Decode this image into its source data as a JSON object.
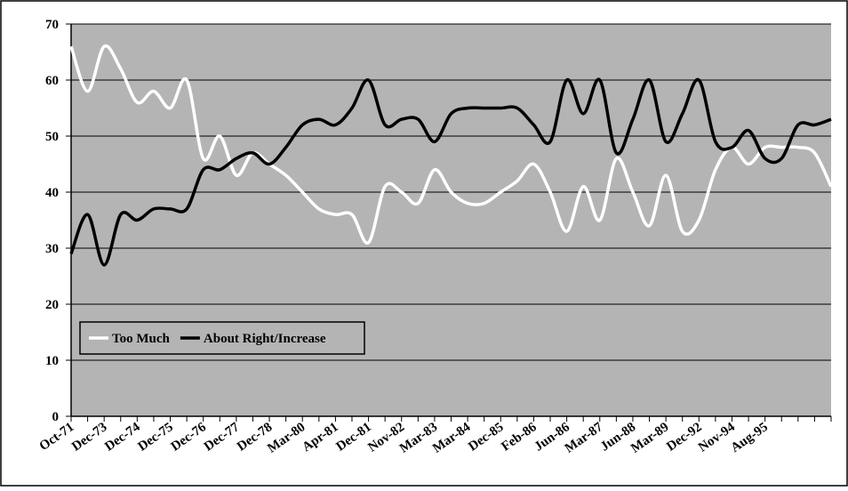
{
  "chart_data": {
    "type": "line",
    "categories": [
      "Oct-71",
      null,
      "Dec-73",
      null,
      "Dec-74",
      null,
      "Dec-75",
      null,
      "Dec-76",
      null,
      "Dec-77",
      null,
      "Dec-78",
      null,
      "Mar-80",
      null,
      "Apr-81",
      null,
      "Dec-81",
      null,
      "Nov-82",
      null,
      "Mar-83",
      null,
      "Mar-84",
      null,
      "Dec-85",
      null,
      "Feb-86",
      null,
      "Jun-86",
      null,
      "Mar-87",
      null,
      "Jun-88",
      null,
      "Mar-89",
      null,
      "Dec-92",
      null,
      "Nov-94",
      null,
      "Aug-95",
      null,
      null,
      null,
      null
    ],
    "series": [
      {
        "name": "Too Much",
        "color": "#ffffff",
        "values": [
          66,
          58,
          66,
          62,
          56,
          58,
          55,
          60,
          46,
          50,
          43,
          47,
          45,
          43,
          40,
          37,
          36,
          36,
          31,
          41,
          40,
          38,
          44,
          40,
          38,
          38,
          40,
          42,
          45,
          40,
          33,
          41,
          35,
          46,
          40,
          34,
          43,
          33,
          35,
          44,
          48,
          45,
          48,
          48,
          48,
          47,
          41
        ]
      },
      {
        "name": "About Right/Increase",
        "color": "#000000",
        "values": [
          29,
          36,
          27,
          36,
          35,
          37,
          37,
          37,
          44,
          44,
          46,
          47,
          45,
          48,
          52,
          53,
          52,
          55,
          60,
          52,
          53,
          53,
          49,
          54,
          55,
          55,
          55,
          55,
          52,
          49,
          60,
          54,
          60,
          47,
          53,
          60,
          49,
          54,
          60,
          49,
          48,
          51,
          46,
          46,
          52,
          52,
          53
        ]
      }
    ],
    "ylim": [
      0,
      70
    ],
    "yticks": [
      0,
      10,
      20,
      30,
      40,
      50,
      60,
      70
    ],
    "grid": true,
    "legend": "lower left"
  }
}
